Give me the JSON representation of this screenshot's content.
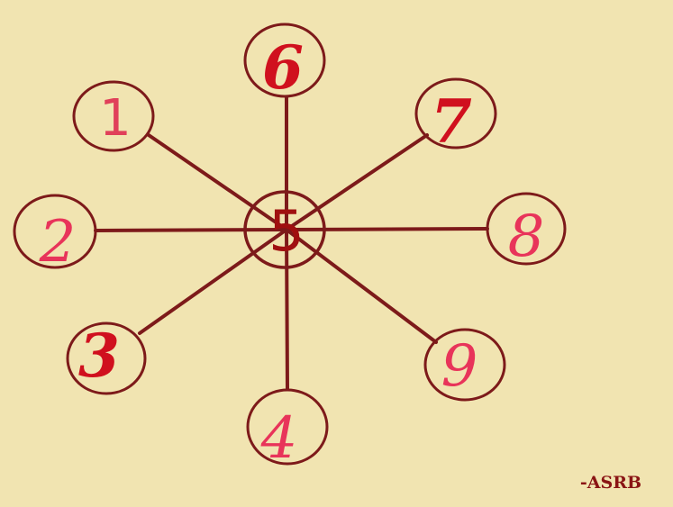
{
  "diagram": {
    "center": {
      "label": "5"
    },
    "nodes": [
      {
        "id": "n1",
        "label": "1"
      },
      {
        "id": "n2",
        "label": "2"
      },
      {
        "id": "n3",
        "label": "3"
      },
      {
        "id": "n4",
        "label": "4"
      },
      {
        "id": "n6",
        "label": "6"
      },
      {
        "id": "n7",
        "label": "7"
      },
      {
        "id": "n8",
        "label": "8"
      },
      {
        "id": "n9",
        "label": "9"
      }
    ],
    "edges": [
      {
        "from": "center",
        "to": "n1"
      },
      {
        "from": "center",
        "to": "n2"
      },
      {
        "from": "center",
        "to": "n3"
      },
      {
        "from": "center",
        "to": "n4"
      },
      {
        "from": "center",
        "to": "n6"
      },
      {
        "from": "center",
        "to": "n7"
      },
      {
        "from": "center",
        "to": "n8"
      },
      {
        "from": "center",
        "to": "n9"
      }
    ]
  },
  "signature": "-ASRB",
  "colors": {
    "background": "#f1e4b1",
    "lines": "#7d1a1a",
    "numbers": "#e0405a"
  }
}
